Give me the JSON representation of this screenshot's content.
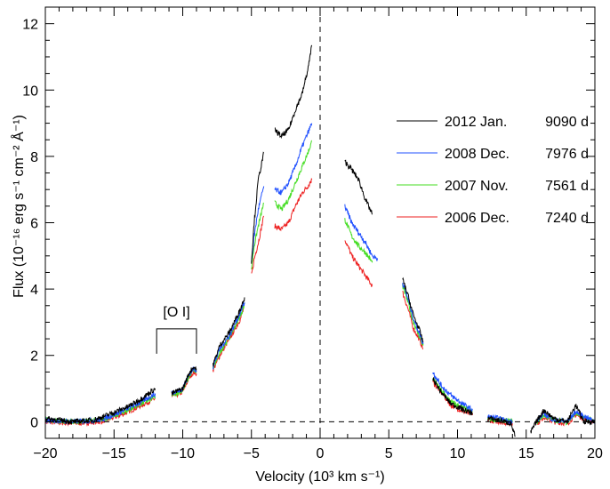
{
  "chart_data": {
    "type": "line",
    "xlabel": "Velocity (10³ km s⁻¹)",
    "ylabel": "Flux (10⁻¹⁶ erg s⁻¹ cm⁻² Å⁻¹)",
    "xlim": [
      -20,
      20
    ],
    "ylim": [
      -0.5,
      12.5
    ],
    "xticks": [
      -20,
      -15,
      -10,
      -5,
      0,
      5,
      10,
      15,
      20
    ],
    "yticks": [
      0,
      2,
      4,
      6,
      8,
      10,
      12
    ],
    "xtick_labels": [
      "−20",
      "−15",
      "−10",
      "−5",
      "0",
      "5",
      "10",
      "15",
      "20"
    ],
    "ytick_labels": [
      "0",
      "2",
      "4",
      "6",
      "8",
      "10",
      "12"
    ],
    "reference_lines": [
      {
        "orientation": "vertical",
        "value": 0,
        "style": "dashed"
      },
      {
        "orientation": "horizontal",
        "value": 0,
        "style": "dashed"
      }
    ],
    "annotation": {
      "text": "[O I]",
      "x_start": -11.9,
      "x_end": -9.0,
      "y_bracket": 2.8
    },
    "legend_position": "right",
    "series": [
      {
        "name": "2012 Jan.",
        "age": "9090 d",
        "color": "#000000",
        "segments": [
          [
            [
              -20,
              0.1
            ],
            [
              -18,
              0.0
            ],
            [
              -16.5,
              0.05
            ],
            [
              -15.5,
              0.2
            ],
            [
              -14,
              0.45
            ],
            [
              -13,
              0.7
            ],
            [
              -12,
              1.0
            ]
          ],
          [
            [
              -10.8,
              0.85
            ],
            [
              -10,
              1.0
            ],
            [
              -9.5,
              1.5
            ],
            [
              -9.2,
              1.65
            ],
            [
              -9.0,
              1.6
            ]
          ],
          [
            [
              -7.8,
              1.7
            ],
            [
              -7.3,
              2.3
            ],
            [
              -6.6,
              2.7
            ],
            [
              -5.8,
              3.4
            ],
            [
              -5.5,
              3.75
            ]
          ],
          [
            [
              -5.0,
              4.8
            ],
            [
              -4.8,
              6.0
            ],
            [
              -4.5,
              7.3
            ],
            [
              -4.1,
              8.1
            ]
          ],
          [
            [
              -3.3,
              8.8
            ],
            [
              -2.8,
              8.6
            ],
            [
              -2.3,
              8.8
            ],
            [
              -1.8,
              9.4
            ],
            [
              -1.3,
              9.9
            ],
            [
              -0.9,
              10.6
            ],
            [
              -0.6,
              11.35
            ]
          ],
          [
            [
              1.8,
              7.85
            ],
            [
              2.3,
              7.6
            ],
            [
              2.8,
              7.3
            ],
            [
              3.3,
              6.7
            ],
            [
              3.8,
              6.25
            ]
          ],
          [
            [
              6.0,
              4.3
            ],
            [
              6.4,
              3.8
            ],
            [
              6.8,
              3.2
            ],
            [
              7.2,
              2.8
            ],
            [
              7.5,
              2.4
            ]
          ],
          [
            [
              8.2,
              1.3
            ],
            [
              8.8,
              0.9
            ],
            [
              9.5,
              0.55
            ],
            [
              10.5,
              0.35
            ],
            [
              11.1,
              0.25
            ]
          ],
          [
            [
              12.2,
              0.1
            ],
            [
              13,
              0.05
            ],
            [
              13.9,
              -0.05
            ],
            [
              14.2,
              -0.45
            ]
          ],
          [
            [
              15.3,
              -0.35
            ],
            [
              15.8,
              0.05
            ],
            [
              16.3,
              0.35
            ],
            [
              17,
              0.1
            ],
            [
              18,
              0.0
            ],
            [
              18.6,
              0.5
            ],
            [
              19.2,
              0.0
            ],
            [
              20,
              0.0
            ]
          ]
        ]
      },
      {
        "name": "2008 Dec.",
        "age": "7976 d",
        "color": "#2050ff",
        "segments": [
          [
            [
              -20,
              0.05
            ],
            [
              -18,
              0.0
            ],
            [
              -16,
              0.05
            ],
            [
              -14.5,
              0.3
            ],
            [
              -13,
              0.6
            ],
            [
              -12,
              0.85
            ]
          ],
          [
            [
              -10.8,
              0.85
            ],
            [
              -10,
              1.0
            ],
            [
              -9.5,
              1.45
            ],
            [
              -9.2,
              1.6
            ],
            [
              -9.0,
              1.55
            ]
          ],
          [
            [
              -7.8,
              1.65
            ],
            [
              -7.3,
              2.2
            ],
            [
              -6.6,
              2.6
            ],
            [
              -5.8,
              3.3
            ],
            [
              -5.5,
              3.6
            ]
          ],
          [
            [
              -5.0,
              4.8
            ],
            [
              -4.8,
              5.6
            ],
            [
              -4.5,
              6.4
            ],
            [
              -4.1,
              7.1
            ]
          ],
          [
            [
              -3.3,
              7.0
            ],
            [
              -2.8,
              6.9
            ],
            [
              -2.3,
              7.2
            ],
            [
              -1.8,
              7.7
            ],
            [
              -1.3,
              8.3
            ],
            [
              -0.9,
              8.7
            ],
            [
              -0.6,
              9.0
            ]
          ],
          [
            [
              1.8,
              6.5
            ],
            [
              2.3,
              6.0
            ],
            [
              2.8,
              5.7
            ],
            [
              3.3,
              5.4
            ],
            [
              3.8,
              5.0
            ],
            [
              4.2,
              4.9
            ]
          ],
          [
            [
              6.0,
              4.2
            ],
            [
              6.4,
              3.7
            ],
            [
              6.8,
              3.1
            ],
            [
              7.2,
              2.7
            ],
            [
              7.5,
              2.35
            ]
          ],
          [
            [
              8.2,
              1.5
            ],
            [
              8.8,
              1.1
            ],
            [
              9.5,
              0.8
            ],
            [
              10.5,
              0.5
            ],
            [
              11.1,
              0.35
            ]
          ],
          [
            [
              12.2,
              0.15
            ],
            [
              13,
              0.1
            ],
            [
              14.0,
              0.0
            ]
          ],
          [
            [
              15.8,
              0.05
            ],
            [
              16.3,
              0.25
            ],
            [
              17,
              0.05
            ],
            [
              18,
              0.0
            ],
            [
              18.6,
              0.3
            ],
            [
              20,
              0.0
            ]
          ]
        ]
      },
      {
        "name": "2007 Nov.",
        "age": "7561 d",
        "color": "#44dd22",
        "segments": [
          [
            [
              -20,
              0.05
            ],
            [
              -18,
              0.0
            ],
            [
              -16,
              0.05
            ],
            [
              -14.5,
              0.25
            ],
            [
              -13,
              0.55
            ],
            [
              -12,
              0.75
            ]
          ],
          [
            [
              -10.8,
              0.8
            ],
            [
              -10,
              0.95
            ],
            [
              -9.5,
              1.4
            ],
            [
              -9.2,
              1.55
            ],
            [
              -9.0,
              1.5
            ]
          ],
          [
            [
              -7.8,
              1.6
            ],
            [
              -7.3,
              2.1
            ],
            [
              -6.6,
              2.55
            ],
            [
              -5.8,
              3.2
            ],
            [
              -5.5,
              3.55
            ]
          ],
          [
            [
              -5.0,
              4.6
            ],
            [
              -4.8,
              5.3
            ],
            [
              -4.5,
              5.9
            ],
            [
              -4.1,
              6.6
            ]
          ],
          [
            [
              -3.3,
              6.6
            ],
            [
              -2.8,
              6.4
            ],
            [
              -2.3,
              6.7
            ],
            [
              -1.8,
              7.2
            ],
            [
              -1.3,
              7.7
            ],
            [
              -0.9,
              8.1
            ],
            [
              -0.6,
              8.45
            ]
          ],
          [
            [
              1.8,
              6.1
            ],
            [
              2.3,
              5.6
            ],
            [
              2.8,
              5.3
            ],
            [
              3.3,
              5.1
            ],
            [
              3.8,
              4.8
            ]
          ],
          [
            [
              6.0,
              4.1
            ],
            [
              6.4,
              3.6
            ],
            [
              6.8,
              3.0
            ],
            [
              7.2,
              2.6
            ],
            [
              7.5,
              2.3
            ]
          ],
          [
            [
              8.2,
              1.3
            ],
            [
              8.8,
              0.95
            ],
            [
              9.5,
              0.6
            ],
            [
              10.5,
              0.4
            ],
            [
              11.1,
              0.3
            ]
          ],
          [
            [
              12.2,
              0.1
            ],
            [
              13,
              0.05
            ],
            [
              14.0,
              0.0
            ]
          ],
          [
            [
              15.8,
              0.0
            ],
            [
              16.3,
              0.2
            ],
            [
              17,
              0.05
            ],
            [
              18,
              0.0
            ],
            [
              18.6,
              0.25
            ],
            [
              20,
              0.0
            ]
          ]
        ]
      },
      {
        "name": "2006 Dec.",
        "age": "7240 d",
        "color": "#ee2222",
        "segments": [
          [
            [
              -20,
              0.0
            ],
            [
              -18,
              -0.05
            ],
            [
              -16,
              0.0
            ],
            [
              -14.5,
              0.2
            ],
            [
              -13,
              0.5
            ],
            [
              -12,
              0.7
            ]
          ],
          [
            [
              -10.8,
              0.75
            ],
            [
              -10,
              0.9
            ],
            [
              -9.5,
              1.35
            ],
            [
              -9.2,
              1.5
            ],
            [
              -9.0,
              1.45
            ]
          ],
          [
            [
              -7.8,
              1.55
            ],
            [
              -7.3,
              2.0
            ],
            [
              -6.6,
              2.5
            ],
            [
              -5.8,
              3.1
            ],
            [
              -5.5,
              3.5
            ]
          ],
          [
            [
              -5.0,
              4.4
            ],
            [
              -4.8,
              4.9
            ],
            [
              -4.5,
              5.4
            ],
            [
              -4.1,
              6.2
            ]
          ],
          [
            [
              -3.3,
              5.9
            ],
            [
              -2.8,
              5.8
            ],
            [
              -2.3,
              6.0
            ],
            [
              -1.8,
              6.5
            ],
            [
              -1.3,
              6.9
            ],
            [
              -0.9,
              7.1
            ],
            [
              -0.6,
              7.3
            ]
          ],
          [
            [
              1.8,
              5.5
            ],
            [
              2.3,
              5.0
            ],
            [
              2.8,
              4.7
            ],
            [
              3.3,
              4.4
            ],
            [
              3.8,
              4.1
            ]
          ],
          [
            [
              6.0,
              3.9
            ],
            [
              6.4,
              3.4
            ],
            [
              6.8,
              2.8
            ],
            [
              7.2,
              2.5
            ],
            [
              7.5,
              2.2
            ]
          ],
          [
            [
              8.2,
              1.2
            ],
            [
              8.8,
              0.9
            ],
            [
              9.5,
              0.5
            ],
            [
              10.5,
              0.3
            ],
            [
              11.1,
              0.2
            ]
          ],
          [
            [
              12.2,
              0.05
            ],
            [
              13,
              0.0
            ],
            [
              14.0,
              -0.05
            ]
          ],
          [
            [
              15.8,
              -0.05
            ],
            [
              16.3,
              0.15
            ],
            [
              17,
              0.0
            ],
            [
              18,
              -0.05
            ],
            [
              18.6,
              0.2
            ],
            [
              20,
              0.0
            ]
          ]
        ]
      }
    ]
  }
}
